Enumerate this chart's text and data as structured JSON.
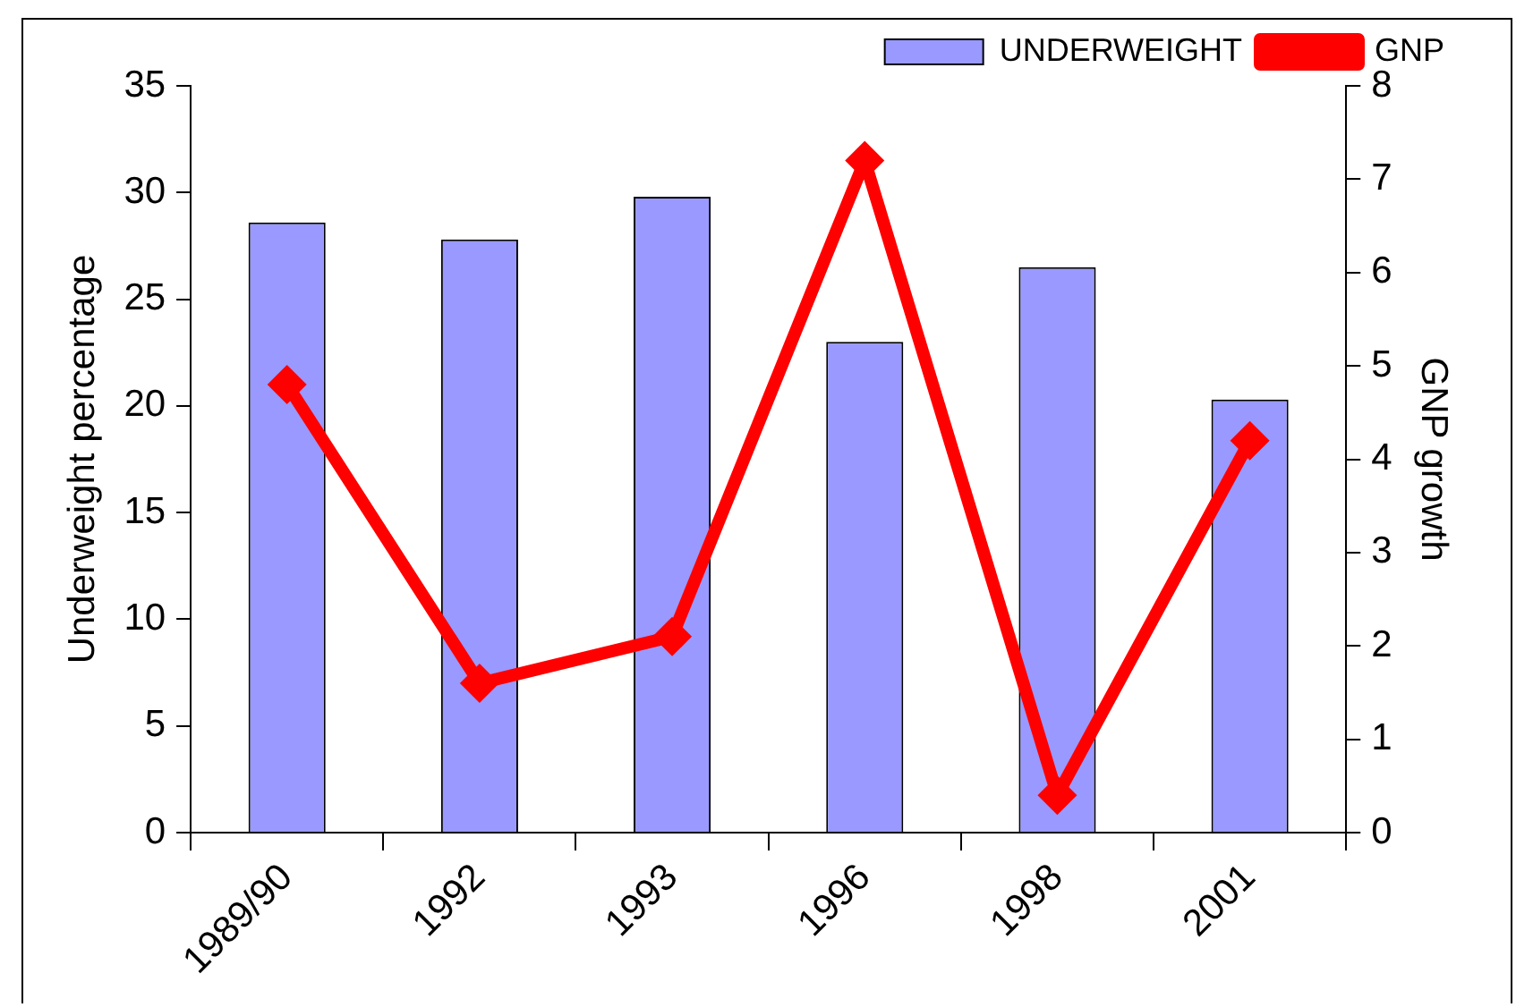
{
  "chart_data": {
    "type": "bar",
    "categories": [
      "1989/90",
      "1992",
      "1993",
      "1996",
      "1998",
      "2001"
    ],
    "ylabel": "Underweight percentage",
    "y2label": "GNP growth",
    "series": [
      {
        "name": "UNDERWEIGHT",
        "color": "#9999ff",
        "values": [
          28.6,
          27.8,
          29.8,
          23.0,
          26.5,
          20.3
        ]
      },
      {
        "name": "GNP",
        "type": "line",
        "axis": "y2",
        "color": "#ff0000",
        "values": [
          4.8,
          1.6,
          2.1,
          7.2,
          0.4,
          4.2
        ]
      }
    ],
    "ylim": [
      0,
      35
    ],
    "yticks": [
      0,
      5,
      10,
      15,
      20,
      25,
      30,
      35
    ],
    "y2lim": [
      0,
      8
    ],
    "y2ticks": [
      0,
      1,
      2,
      3,
      4,
      5,
      6,
      7,
      8
    ],
    "marker": "diamond",
    "legend": "top right",
    "grid": false
  }
}
